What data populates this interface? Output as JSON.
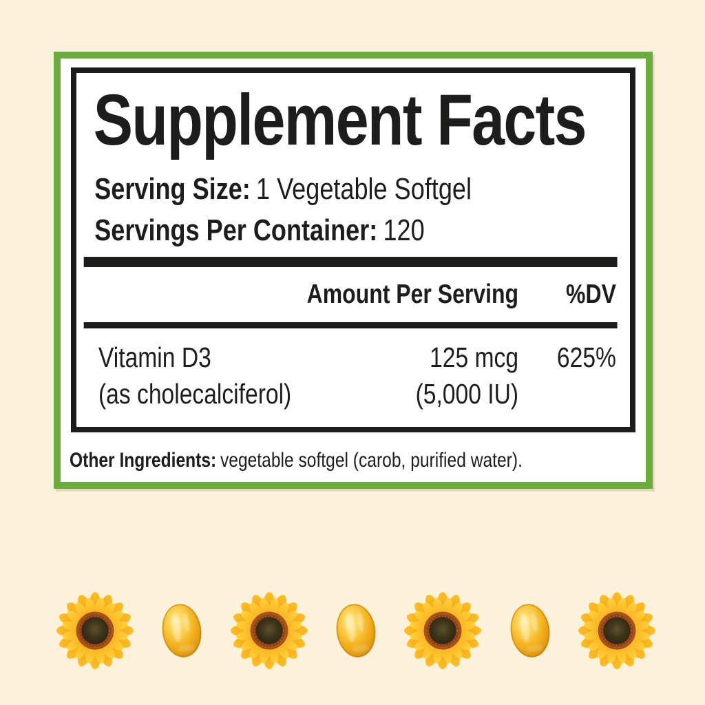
{
  "page": {
    "background_color": "#fcf2dc"
  },
  "label": {
    "title": "Supplement Facts",
    "border_color": "#6cac3f",
    "serving_size": {
      "label": "Serving Size:",
      "value": "1 Vegetable Softgel"
    },
    "servings_per_container": {
      "label": "Servings Per Container:",
      "value": "120"
    },
    "columns": {
      "amount": "Amount Per Serving",
      "dv": "%DV"
    },
    "nutrients": [
      {
        "name": "Vitamin D3",
        "name_detail": "(as cholecalciferol)",
        "amount": "125 mcg",
        "amount_detail": "(5,000 IU)",
        "dv": "625%"
      }
    ],
    "other_ingredients": {
      "label": "Other Ingredients:",
      "value": "vegetable softgel (carob, purified water)."
    }
  },
  "decor": {
    "pattern": [
      "sunflower",
      "softgel",
      "sunflower",
      "softgel",
      "sunflower",
      "softgel",
      "sunflower"
    ],
    "sunflower_petal_color": "#ffc91f",
    "sunflower_center_color": "#3b3319",
    "softgel_color": "#f3b01b"
  }
}
